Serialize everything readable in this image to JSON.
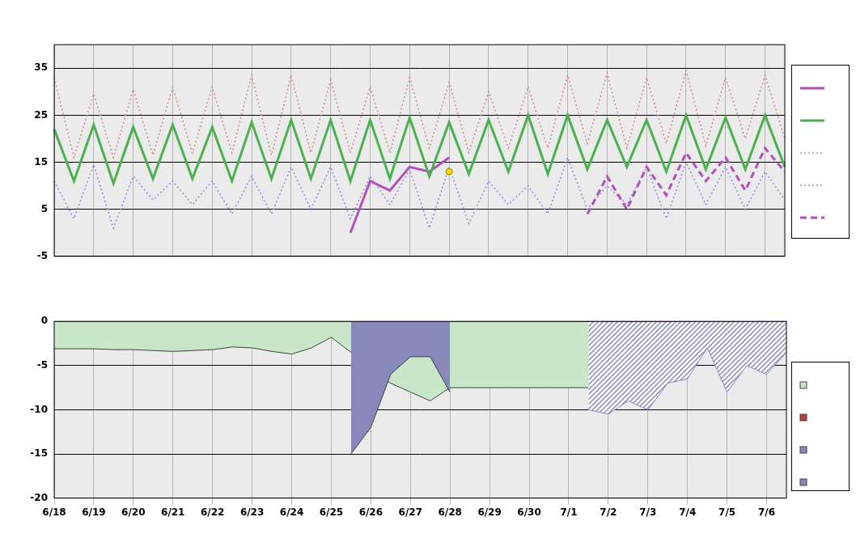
{
  "chart_data": [
    {
      "type": "line",
      "categories": [
        "6/18",
        null,
        "6/19",
        null,
        "6/20",
        null,
        "6/21",
        null,
        "6/22",
        null,
        "6/23",
        null,
        "6/24",
        null,
        "6/25",
        null,
        "6/26",
        null,
        "6/27",
        null,
        "6/28",
        null,
        "6/29",
        null,
        "6/30",
        null,
        "7/1",
        null,
        "7/2",
        null,
        "7/3",
        null,
        "7/4",
        null,
        "7/5",
        null,
        "7/6",
        null
      ],
      "series": [
        {
          "color": "#b050b8",
          "line_style": "solid",
          "values": [
            null,
            null,
            null,
            null,
            null,
            null,
            null,
            null,
            null,
            null,
            null,
            null,
            null,
            null,
            null,
            0,
            11,
            9,
            14,
            13,
            16,
            null,
            null,
            null,
            null,
            null,
            null,
            null,
            null,
            null,
            null,
            null,
            null,
            null,
            null,
            null,
            null,
            null
          ]
        },
        {
          "color": "#4caf50",
          "line_style": "solid",
          "values": [
            22,
            11,
            23,
            10.5,
            22.5,
            11.5,
            23,
            11.5,
            22.5,
            11,
            23.5,
            11.5,
            24,
            11.5,
            24,
            11,
            24,
            11.5,
            24.5,
            12,
            23.5,
            12.5,
            24,
            13,
            25,
            12.5,
            25,
            13.5,
            24,
            14,
            24,
            13,
            25,
            13.5,
            24.5,
            13.5,
            25,
            14
          ]
        },
        {
          "color": "#d08a8a",
          "line_style": "dotted",
          "values": [
            33,
            16,
            29.5,
            16,
            30.5,
            16.5,
            31,
            17,
            31,
            17,
            33.5,
            16.5,
            33.5,
            17,
            32.5,
            17,
            31,
            17,
            33,
            18,
            32,
            17,
            30,
            18,
            31,
            18,
            33.5,
            19,
            34,
            18,
            33,
            19,
            34.5,
            18.5,
            33,
            20,
            33.5,
            20
          ]
        },
        {
          "color": "#8a8ae0",
          "line_style": "dotted",
          "values": [
            11,
            3,
            14.5,
            1,
            12,
            7,
            11,
            6,
            11,
            4,
            12,
            4,
            14,
            5,
            14,
            3,
            12,
            6,
            13.5,
            1,
            14,
            2,
            11,
            6,
            10,
            4,
            16,
            5,
            10,
            6,
            14,
            3,
            15,
            6,
            14,
            5,
            13,
            7
          ]
        },
        {
          "color": "#b050b8",
          "line_style": "dashed",
          "values": [
            null,
            null,
            null,
            null,
            null,
            null,
            null,
            null,
            null,
            null,
            null,
            null,
            null,
            null,
            null,
            null,
            null,
            null,
            null,
            null,
            null,
            null,
            null,
            null,
            null,
            null,
            null,
            4,
            12,
            5,
            14,
            8,
            17,
            11,
            16,
            9,
            18,
            13
          ]
        },
        {
          "type": "scatter",
          "color": "#ffd700",
          "marker": "circle",
          "values": [
            null,
            null,
            null,
            null,
            null,
            null,
            null,
            null,
            null,
            null,
            null,
            null,
            null,
            null,
            null,
            null,
            null,
            null,
            null,
            null,
            13,
            null,
            null,
            null,
            null,
            null,
            null,
            null,
            null,
            null,
            null,
            null,
            null,
            null,
            null,
            null,
            null,
            null
          ]
        }
      ],
      "ylim": [
        -5,
        40
      ],
      "yticks": [
        -5,
        5,
        15,
        25,
        35
      ],
      "grid": true,
      "tick_labels": "y",
      "legend": "right"
    },
    {
      "type": "area",
      "categories": [
        "6/18",
        null,
        "6/19",
        null,
        "6/20",
        null,
        "6/21",
        null,
        "6/22",
        null,
        "6/23",
        null,
        "6/24",
        null,
        "6/25",
        null,
        "6/26",
        null,
        "6/27",
        null,
        "6/28",
        null,
        "6/29",
        null,
        "6/30",
        null,
        "7/1",
        null,
        "7/2",
        null,
        "7/3",
        null,
        "7/4",
        null,
        "7/5",
        null,
        "7/6",
        null
      ],
      "series": [
        {
          "color": "#c8e6c8",
          "values": [
            -3.1,
            -3.1,
            -3.1,
            -3.2,
            -3.2,
            -3.3,
            -3.4,
            -3.3,
            -3.2,
            -2.9,
            -3,
            -3.4,
            -3.7,
            -3,
            -1.8,
            -3.5,
            -5.5,
            -7,
            -8,
            -9,
            -7.5,
            -7.5,
            -7.5,
            -7.5,
            -7.5,
            -7.5,
            -7.5,
            -7.5,
            null,
            null,
            null,
            null,
            null,
            null,
            null,
            null,
            null,
            null
          ]
        },
        {
          "color": "#c04040",
          "values": [
            null,
            null,
            null,
            null,
            null,
            null,
            null,
            null,
            null,
            null,
            null,
            null,
            null,
            null,
            null,
            null,
            null,
            null,
            null,
            null,
            null,
            null,
            null,
            null,
            null,
            null,
            null,
            null,
            null,
            null,
            null,
            null,
            null,
            null,
            null,
            null,
            null,
            null
          ]
        },
        {
          "color": "#8888bb",
          "values": [
            null,
            null,
            null,
            null,
            null,
            null,
            null,
            null,
            null,
            null,
            null,
            null,
            null,
            null,
            null,
            -15,
            -12,
            -6,
            -4,
            -4,
            -8,
            null,
            null,
            null,
            null,
            null,
            null,
            null,
            null,
            null,
            null,
            null,
            null,
            null,
            null,
            null,
            null,
            null
          ]
        },
        {
          "color": "#8888bb",
          "line_style": "hatched",
          "values": [
            null,
            null,
            null,
            null,
            null,
            null,
            null,
            null,
            null,
            null,
            null,
            null,
            null,
            null,
            null,
            null,
            null,
            null,
            null,
            null,
            null,
            null,
            null,
            null,
            null,
            null,
            null,
            -10,
            -10.5,
            -9,
            -10,
            -7,
            -6.5,
            -3,
            -8,
            -5,
            -6,
            -3.5
          ]
        }
      ],
      "ylim": [
        -20,
        0
      ],
      "yticks": [
        -20,
        -15,
        -10,
        -5,
        0
      ],
      "grid": true,
      "legend": "right"
    }
  ]
}
